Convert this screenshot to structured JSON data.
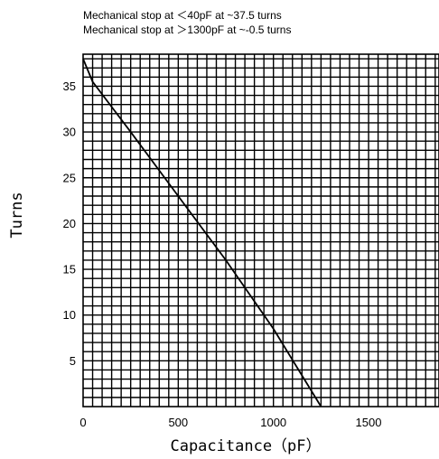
{
  "chart_data": {
    "type": "line",
    "annotations": [
      "Mechanical stop at ＜40pF at ~37.5 turns",
      "Mechanical stop at ＞1300pF at ~-0.5 turns"
    ],
    "xlabel": "Capacitance（pF）",
    "ylabel": "Turns",
    "xlim": [
      0,
      1870
    ],
    "ylim": [
      0,
      38.5
    ],
    "x_ticks": [
      0,
      500,
      1000,
      1500
    ],
    "x_tick_labels": [
      "0",
      "500",
      "1000",
      "1500"
    ],
    "y_ticks": [
      5,
      10,
      15,
      20,
      25,
      30,
      35
    ],
    "y_tick_labels": [
      "5",
      "10",
      "15",
      "20",
      "25",
      "30",
      "35"
    ],
    "grid": true,
    "grid_x_step": 50,
    "grid_y_step": 1,
    "legend": "none",
    "series": [
      {
        "x": [
          0,
          50,
          250,
          500,
          750,
          1000,
          1250
        ],
        "y": [
          38,
          35.5,
          30,
          23,
          16,
          8.5,
          0
        ]
      }
    ]
  }
}
